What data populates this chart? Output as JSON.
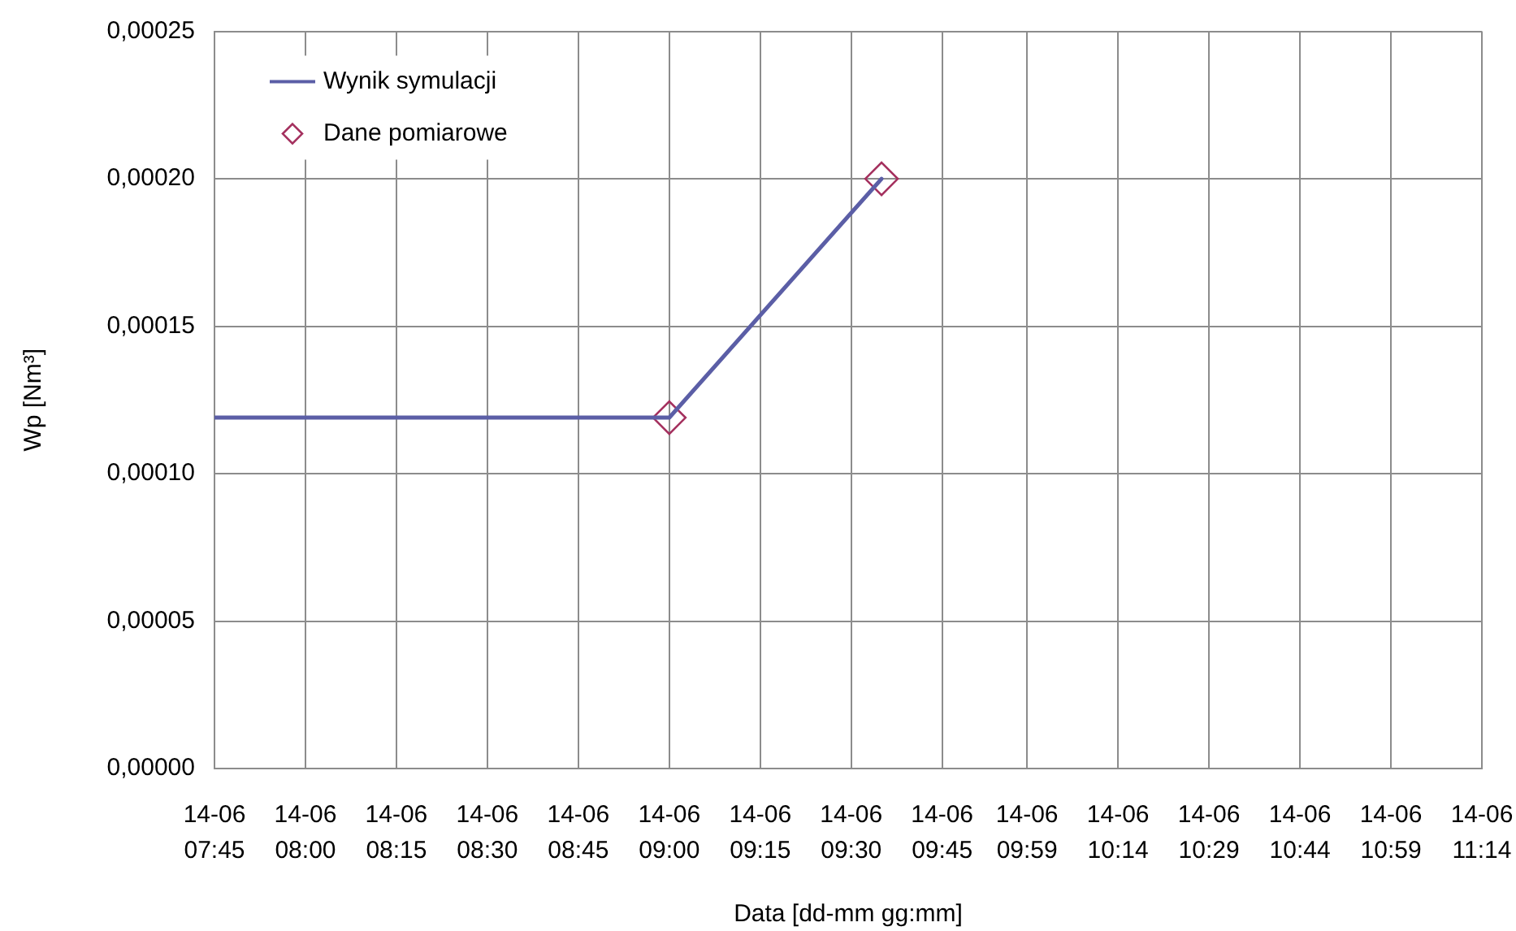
{
  "chart_data": {
    "type": "line",
    "xlabel": "Data [dd-mm gg:mm]",
    "ylabel": "Wp [Nm³]",
    "xlim": [
      "--06-14T07:45",
      "--06-14T11:14"
    ],
    "xticks": [
      {
        "value": "--06-14T07:45",
        "label": "14-06 07:45"
      },
      {
        "value": "--06-14T08:00",
        "label": "14-06 08:00"
      },
      {
        "value": "--06-14T08:15",
        "label": "14-06 08:15"
      },
      {
        "value": "--06-14T08:30",
        "label": "14-06 08:30"
      },
      {
        "value": "--06-14T08:45",
        "label": "14-06 08:45"
      },
      {
        "value": "--06-14T09:00",
        "label": "14-06 09:00"
      },
      {
        "value": "--06-14T09:15",
        "label": "14-06 09:15"
      },
      {
        "value": "--06-14T09:30",
        "label": "14-06 09:30"
      },
      {
        "value": "--06-14T09:45",
        "label": "14-06 09:45"
      },
      {
        "value": "--06-14T09:59",
        "label": "14-06 09:59"
      },
      {
        "value": "--06-14T10:14",
        "label": "14-06 10:14"
      },
      {
        "value": "--06-14T10:29",
        "label": "14-06 10:29"
      },
      {
        "value": "--06-14T10:44",
        "label": "14-06 10:44"
      },
      {
        "value": "--06-14T10:59",
        "label": "14-06 10:59"
      },
      {
        "value": "--06-14T11:14",
        "label": "14-06 11:14"
      }
    ],
    "ylim": [
      0,
      0.00025
    ],
    "yticks": [
      {
        "value": 0,
        "label": "0,00000"
      },
      {
        "value": 5e-05,
        "label": "0,00005"
      },
      {
        "value": 0.0001,
        "label": "0,00010"
      },
      {
        "value": 0.00015,
        "label": "0,00015"
      },
      {
        "value": 0.0002,
        "label": "0,00020"
      },
      {
        "value": 0.00025,
        "label": "0,00025"
      }
    ],
    "grid": true,
    "legend": "top left",
    "series": [
      {
        "name": "Wynik symulacji",
        "type": "line",
        "color": "#5b5ea6",
        "marker": "none",
        "x": [
          "--06-14T07:45",
          "--06-14T09:00",
          "--06-14T09:35"
        ],
        "values": [
          0.000119,
          0.000119,
          0.0002
        ]
      },
      {
        "name": "Dane pomiarowe",
        "type": "scatter",
        "color": "#a4305e",
        "marker": "diamond",
        "x": [
          "--06-14T09:00",
          "--06-14T09:35"
        ],
        "values": [
          0.000119,
          0.0002
        ]
      }
    ]
  }
}
